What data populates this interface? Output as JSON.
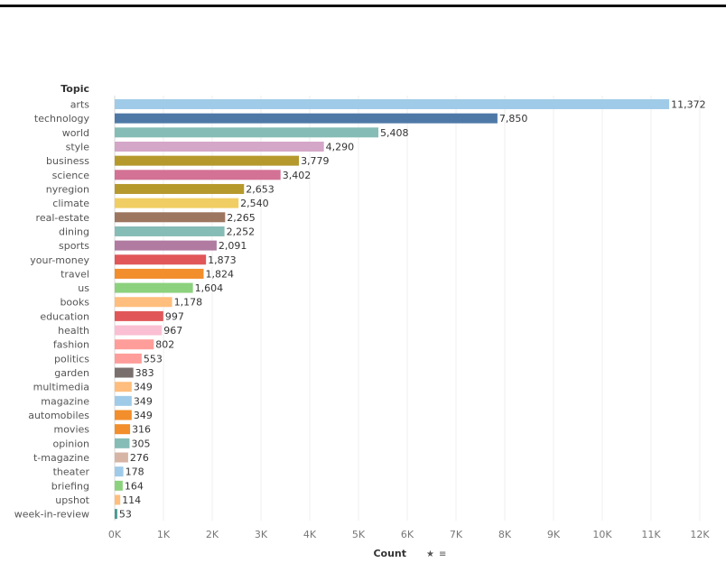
{
  "chart_data": {
    "type": "bar",
    "orientation": "horizontal",
    "dimension_header": "Topic",
    "xlabel": "Count",
    "xlim": [
      0,
      12000
    ],
    "x_ticks": [
      "0K",
      "1K",
      "2K",
      "3K",
      "4K",
      "5K",
      "6K",
      "7K",
      "8K",
      "9K",
      "10K",
      "11K",
      "12K"
    ],
    "grid": true,
    "categories": [
      "arts",
      "technology",
      "world",
      "style",
      "business",
      "science",
      "nyregion",
      "climate",
      "real-estate",
      "dining",
      "sports",
      "your-money",
      "travel",
      "us",
      "books",
      "education",
      "health",
      "fashion",
      "politics",
      "garden",
      "multimedia",
      "magazine",
      "automobiles",
      "movies",
      "opinion",
      "t-magazine",
      "theater",
      "briefing",
      "upshot",
      "week-in-review"
    ],
    "values": [
      11372,
      7850,
      5408,
      4290,
      3779,
      3402,
      2653,
      2540,
      2265,
      2252,
      2091,
      1873,
      1824,
      1604,
      1178,
      997,
      967,
      802,
      553,
      383,
      349,
      349,
      349,
      316,
      305,
      276,
      178,
      164,
      114,
      53
    ],
    "value_labels": [
      "11,372",
      "7,850",
      "5,408",
      "4,290",
      "3,779",
      "3,402",
      "2,653",
      "2,540",
      "2,265",
      "2,252",
      "2,091",
      "1,873",
      "1,824",
      "1,604",
      "1,178",
      "997",
      "967",
      "802",
      "553",
      "383",
      "349",
      "349",
      "349",
      "316",
      "305",
      "276",
      "178",
      "164",
      "114",
      "53"
    ],
    "colors": [
      "#a0cbe8",
      "#4e79a7",
      "#86bcb6",
      "#d4a6c8",
      "#b6992d",
      "#d37295",
      "#b6992d",
      "#f1ce63",
      "#9d7660",
      "#86bcb6",
      "#b07aa1",
      "#e15759",
      "#f28e2b",
      "#8cd17d",
      "#ffbe7d",
      "#e15759",
      "#fabfd2",
      "#ff9d9a",
      "#ff9d9a",
      "#79706e",
      "#ffbe7d",
      "#a0cbe8",
      "#f28e2b",
      "#f28e2b",
      "#86bcb6",
      "#d7b5a6",
      "#a0cbe8",
      "#8cd17d",
      "#ffbe7d",
      "#499894"
    ]
  }
}
